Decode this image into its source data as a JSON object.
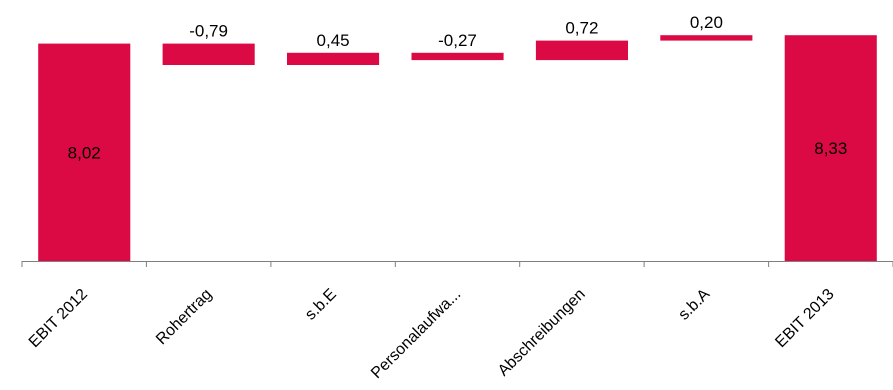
{
  "chart_data": {
    "type": "bar",
    "subtype": "waterfall",
    "title": "",
    "xlabel": "",
    "ylabel": "",
    "categories": [
      "EBIT 2012",
      "Rohertrag",
      "s.b.E",
      "Personalaufwa...",
      "Abschreibungen",
      "s.b.A",
      "EBIT 2013"
    ],
    "values": [
      8.02,
      -0.79,
      0.45,
      -0.27,
      0.72,
      0.2,
      8.33
    ],
    "value_labels": [
      "8,02",
      "-0,79",
      "0,45",
      "-0,27",
      "0,72",
      "0,20",
      "8,33"
    ],
    "bar_kind": [
      "total",
      "delta",
      "delta",
      "delta",
      "delta",
      "delta",
      "total"
    ],
    "ylim": [
      0,
      9
    ],
    "grid": false,
    "legend": "none",
    "color": "#dc0a44",
    "decimal_separator": ","
  }
}
